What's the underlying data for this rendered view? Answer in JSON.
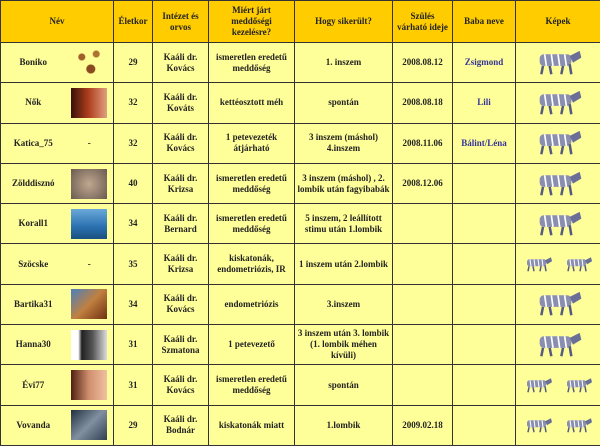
{
  "headers": {
    "name": "Név",
    "age": "Életkor",
    "clinic": "Intézet és orvos",
    "reason": "Miért járt meddőségi kezelésre?",
    "how": "Hogy sikerült?",
    "due": "Szülés várható ideje",
    "baby": "Baba neve",
    "pics": "Képek"
  },
  "colors": {
    "header": "#FFCC00",
    "body": "#FFFF99",
    "baby_name": "#333399"
  },
  "rows": [
    {
      "name": "Boniko",
      "avatar": "butterflies",
      "age": "29",
      "clinic": "Kaáli dr. Kovács",
      "reason": "ismeretlen eredetű meddőség",
      "how": "1. inszem",
      "due": "2008.08.12",
      "baby": "Zsigmond",
      "zebras": 1
    },
    {
      "name": "Nők",
      "avatar": "face",
      "age": "32",
      "clinic": "Kaáli dr. Kováts",
      "reason": "kettéosztott méh",
      "how": "spontán",
      "due": "2008.08.18",
      "baby": "Lili",
      "zebras": 1
    },
    {
      "name": "Katica_75",
      "avatar": "-",
      "age": "32",
      "clinic": "Kaáli dr. Kovács",
      "reason": "1 petevezeték átjárható",
      "how": "3 inszem (máshol) 4.inszem",
      "due": "2008.11.06",
      "baby": "Bálint/Léna",
      "zebras": 1
    },
    {
      "name": "Zölddisznó",
      "avatar": "animal",
      "age": "40",
      "clinic": "Kaáli dr. Krizsa",
      "reason": "ismeretlen eredetű meddőség",
      "how": "3 inszem (máshol) , 2. lombik után fagyibabák",
      "due": "2008.12.06",
      "baby": "",
      "zebras": 1
    },
    {
      "name": "Korall1",
      "avatar": "dolphin",
      "age": "34",
      "clinic": "Kaáli dr. Bernard",
      "reason": "ismeretlen eredetű meddőség",
      "how": "5 inszem, 2 leállított stimu után 1.lombik",
      "due": "",
      "baby": "",
      "zebras": 1
    },
    {
      "name": "Szöcske",
      "avatar": "-",
      "age": "35",
      "clinic": "Kaáli dr. Krizsa",
      "reason": "kiskatonák, endometriózis, IR",
      "how": "1 inszem után 2.lombik",
      "due": "",
      "baby": "",
      "zebras": 2
    },
    {
      "name": "Bartika31",
      "avatar": "giraffe",
      "age": "34",
      "clinic": "Kaáli dr. Kovács",
      "reason": "endometriózis",
      "how": "3.inszem",
      "due": "",
      "baby": "",
      "zebras": 1
    },
    {
      "name": "Hanna30",
      "avatar": "belly",
      "age": "31",
      "clinic": "Kaáli dr. Szmatona",
      "reason": "1 petevezető",
      "how": "3 inszem után 3. lombik (1. lombik méhen kívüli)",
      "due": "",
      "baby": "",
      "zebras": 1
    },
    {
      "name": "Évi77",
      "avatar": "mother-child",
      "age": "31",
      "clinic": "Kaáli dr. Kovács",
      "reason": "ismeretlen eredetű meddőség",
      "how": "spontán",
      "due": "",
      "baby": "",
      "zebras": 2
    },
    {
      "name": "Vovanda",
      "avatar": "baby",
      "age": "29",
      "clinic": "Kaáli dr. Bodnár",
      "reason": "kiskatonák miatt",
      "how": "1.lombik",
      "due": "2009.02.18",
      "baby": "",
      "zebras": 2
    }
  ]
}
